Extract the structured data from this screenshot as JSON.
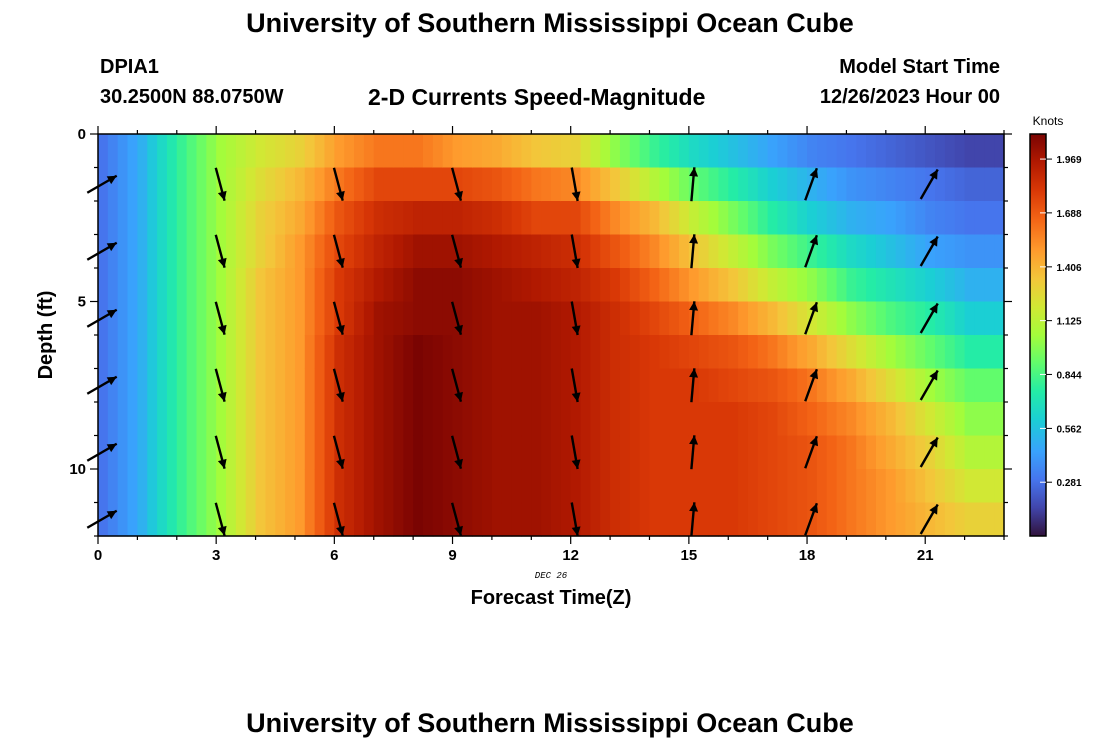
{
  "header": {
    "title": "University of Southern Mississippi Ocean Cube",
    "station_id": "DPIA1",
    "coordinates": "30.2500N  88.0750W",
    "subtitle": "2-D Currents Speed-Magnitude",
    "model_start_label": "Model Start Time",
    "model_start_time": "12/26/2023 Hour 00"
  },
  "footer": {
    "title": "University of Southern Mississippi Ocean Cube"
  },
  "chart_data": {
    "type": "heatmap",
    "xlabel": "Forecast Time(Z)",
    "ylabel": "Depth (ft)",
    "date_label": "DEC 26",
    "xlim": [
      0,
      23
    ],
    "ylim": [
      0,
      12
    ],
    "x_ticks": [
      0,
      3,
      6,
      9,
      12,
      15,
      18,
      21
    ],
    "y_ticks": [
      0,
      5,
      10
    ],
    "colorbar": {
      "label": "Knots",
      "min": 0,
      "max": 2.1,
      "ticks": [
        0.281,
        0.562,
        0.844,
        1.125,
        1.406,
        1.688,
        1.969
      ],
      "tick_labels": [
        "0.281",
        "0.562",
        "0.844",
        "1.125",
        "1.406",
        "1.688",
        "1.969"
      ]
    },
    "hours": [
      0,
      1,
      2,
      3,
      4,
      5,
      6,
      7,
      8,
      9,
      10,
      11,
      12,
      13,
      14,
      15,
      16,
      17,
      18,
      19,
      20,
      21,
      22
    ],
    "depth_levels": [
      0.5,
      1.5,
      2.5,
      3.5,
      4.5,
      5.5,
      6.5,
      7.5,
      8.5,
      9.5,
      10.5,
      11.5
    ],
    "hour_profiles": {
      "0": [
        0.3,
        0.3,
        0.3,
        0.3,
        0.3,
        0.3,
        0.3,
        0.3,
        0.3,
        0.3,
        0.3,
        0.3
      ],
      "1": [
        0.5,
        0.5,
        0.5,
        0.5,
        0.5,
        0.5,
        0.5,
        0.5,
        0.5,
        0.5,
        0.5,
        0.5
      ],
      "2": [
        0.8,
        0.8,
        0.8,
        0.8,
        0.8,
        0.8,
        0.8,
        0.8,
        0.8,
        0.8,
        0.8,
        0.8
      ],
      "3": [
        1.05,
        1.05,
        1.05,
        1.05,
        1.05,
        1.05,
        1.05,
        1.05,
        1.05,
        1.05,
        1.05,
        1.05
      ],
      "4": [
        1.2,
        1.25,
        1.3,
        1.3,
        1.35,
        1.35,
        1.35,
        1.35,
        1.35,
        1.35,
        1.35,
        1.35
      ],
      "5": [
        1.3,
        1.4,
        1.45,
        1.5,
        1.5,
        1.5,
        1.5,
        1.5,
        1.5,
        1.5,
        1.5,
        1.5
      ],
      "6": [
        1.5,
        1.6,
        1.7,
        1.75,
        1.8,
        1.8,
        1.85,
        1.85,
        1.85,
        1.85,
        1.85,
        1.85
      ],
      "7": [
        1.6,
        1.75,
        1.85,
        1.9,
        1.95,
        2.0,
        2.0,
        2.0,
        2.0,
        2.0,
        2.0,
        2.0
      ],
      "8": [
        1.6,
        1.75,
        1.9,
        2.0,
        2.05,
        2.05,
        2.1,
        2.1,
        2.1,
        2.1,
        2.1,
        2.1
      ],
      "9": [
        1.5,
        1.75,
        1.9,
        2.0,
        2.05,
        2.05,
        2.05,
        2.05,
        2.05,
        2.05,
        2.05,
        2.05
      ],
      "10": [
        1.45,
        1.7,
        1.85,
        1.95,
        2.0,
        2.0,
        2.0,
        2.0,
        2.0,
        2.0,
        2.0,
        2.0
      ],
      "11": [
        1.35,
        1.6,
        1.75,
        1.9,
        1.95,
        2.0,
        2.0,
        2.0,
        2.0,
        2.0,
        2.0,
        2.0
      ],
      "12": [
        1.3,
        1.55,
        1.75,
        1.85,
        1.9,
        1.95,
        1.95,
        1.95,
        1.95,
        1.95,
        1.95,
        1.95
      ],
      "13": [
        1.0,
        1.35,
        1.55,
        1.7,
        1.8,
        1.85,
        1.85,
        1.85,
        1.85,
        1.85,
        1.85,
        1.85
      ],
      "14": [
        0.8,
        1.1,
        1.4,
        1.55,
        1.65,
        1.75,
        1.8,
        1.8,
        1.8,
        1.8,
        1.8,
        1.8
      ],
      "15": [
        0.65,
        0.9,
        1.15,
        1.35,
        1.5,
        1.65,
        1.75,
        1.8,
        1.8,
        1.8,
        1.8,
        1.8
      ],
      "16": [
        0.55,
        0.75,
        0.95,
        1.15,
        1.35,
        1.55,
        1.7,
        1.75,
        1.8,
        1.8,
        1.8,
        1.8
      ],
      "17": [
        0.45,
        0.6,
        0.75,
        0.95,
        1.15,
        1.4,
        1.6,
        1.7,
        1.75,
        1.75,
        1.75,
        1.75
      ],
      "18": [
        0.35,
        0.5,
        0.6,
        0.8,
        1.0,
        1.2,
        1.45,
        1.6,
        1.65,
        1.7,
        1.7,
        1.7
      ],
      "19": [
        0.3,
        0.4,
        0.5,
        0.65,
        0.8,
        1.0,
        1.25,
        1.45,
        1.55,
        1.6,
        1.6,
        1.6
      ],
      "20": [
        0.25,
        0.35,
        0.45,
        0.55,
        0.7,
        0.85,
        1.05,
        1.25,
        1.4,
        1.45,
        1.5,
        1.5
      ],
      "21": [
        0.2,
        0.3,
        0.35,
        0.45,
        0.6,
        0.75,
        0.9,
        1.05,
        1.2,
        1.3,
        1.35,
        1.4
      ],
      "22": [
        0.15,
        0.25,
        0.3,
        0.4,
        0.5,
        0.6,
        0.75,
        0.9,
        1.0,
        1.1,
        1.2,
        1.3
      ]
    },
    "arrow_hours": [
      0,
      3,
      6,
      9,
      12,
      15,
      18,
      21
    ],
    "arrow_depths": [
      1.5,
      3.5,
      5.5,
      7.5,
      9.5,
      11.5
    ],
    "arrow_directions_deg": [
      60,
      165,
      165,
      165,
      170,
      5,
      20,
      30
    ]
  }
}
